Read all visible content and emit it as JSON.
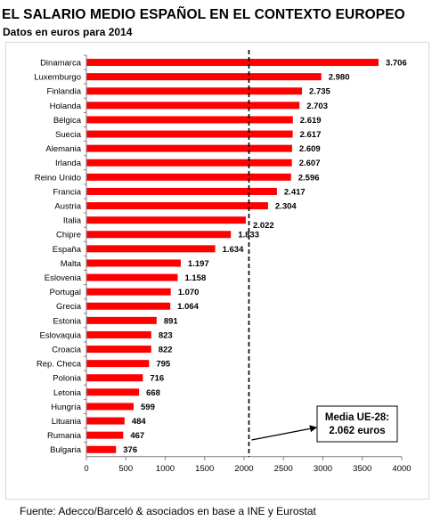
{
  "title": "EL SALARIO MEDIO ESPAÑOL EN EL CONTEXTO EUROPEO",
  "subtitle": "Datos en euros para 2014",
  "source": "Fuente: Adecco/Barceló & asociados en base a INE y Eurostat",
  "colors": {
    "bar": "#ff0000",
    "axis": "#7f7f7f",
    "frame": "#d9d9d9",
    "reference": "#000000"
  },
  "chart_data": {
    "type": "bar",
    "orientation": "horizontal",
    "categories": [
      "Dinamarca",
      "Luxemburgo",
      "Finlandia",
      "Holanda",
      "Bélgica",
      "Suecia",
      "Alemania",
      "Irlanda",
      "Reino Unido",
      "Francia",
      "Austria",
      "Italia",
      "Chipre",
      "España",
      "Malta",
      "Eslovenia",
      "Portugal",
      "Grecia",
      "Estonia",
      "Eslovaquia",
      "Croacia",
      "Rep. Checa",
      "Polonia",
      "Letonia",
      "Hungría",
      "Lituania",
      "Rumania",
      "Bulgaria"
    ],
    "values": [
      3706,
      2980,
      2735,
      2703,
      2619,
      2617,
      2609,
      2607,
      2596,
      2417,
      2304,
      2022,
      1833,
      1634,
      1197,
      1158,
      1070,
      1064,
      891,
      823,
      822,
      795,
      716,
      668,
      599,
      484,
      467,
      376
    ],
    "value_labels": [
      "3.706",
      "2.980",
      "2.735",
      "2.703",
      "2.619",
      "2.617",
      "2.609",
      "2.607",
      "2.596",
      "2.417",
      "2.304",
      "2.022",
      "1.833",
      "1.634",
      "1.197",
      "1.158",
      "1.070",
      "1.064",
      "891",
      "823",
      "822",
      "795",
      "716",
      "668",
      "599",
      "484",
      "467",
      "376"
    ],
    "xlim": [
      0,
      4000
    ],
    "xticks": [
      0,
      500,
      1000,
      1500,
      2000,
      2500,
      3000,
      3500,
      4000
    ],
    "xtick_labels": [
      "0",
      "500",
      "1000",
      "1500",
      "2000",
      "2500",
      "3000",
      "3500",
      "4000"
    ],
    "grid": false,
    "reference_line": {
      "value": 2062,
      "style": "dashed"
    },
    "annotation": {
      "lines": [
        "Media UE-28:",
        "2.062 euros"
      ]
    }
  }
}
